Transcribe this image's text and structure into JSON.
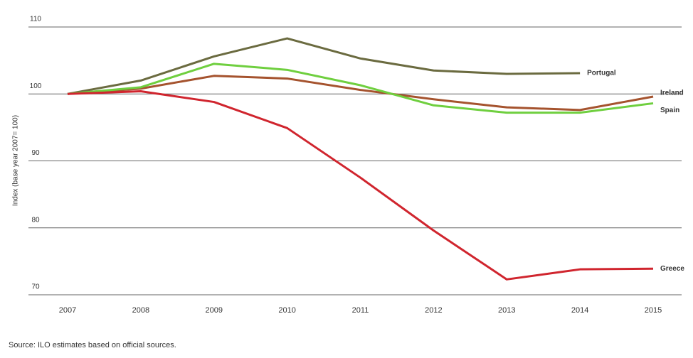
{
  "chart_data": {
    "type": "line",
    "y_label": "Index (base year 2007= 100)",
    "source": "Source: ILO estimates based on official sources.",
    "categories": [
      "2007",
      "2008",
      "2009",
      "2010",
      "2011",
      "2012",
      "2013",
      "2014",
      "2015"
    ],
    "series": [
      {
        "name": "Portugal",
        "color": "#6b6b40",
        "values": [
          100,
          102,
          105.6,
          108.3,
          105.3,
          103.5,
          103,
          103.1,
          null
        ]
      },
      {
        "name": "Ireland",
        "color": "#a5532e",
        "values": [
          100,
          100.8,
          102.7,
          102.3,
          100.6,
          99.2,
          98,
          97.6,
          99.6
        ]
      },
      {
        "name": "Spain",
        "color": "#6fcf3f",
        "values": [
          100,
          101,
          104.5,
          103.6,
          101.3,
          98.3,
          97.2,
          97.2,
          98.6
        ]
      },
      {
        "name": "Greece",
        "color": "#d0252e",
        "values": [
          100,
          100.4,
          98.8,
          94.9,
          87.5,
          79.6,
          72.3,
          73.8,
          73.9
        ]
      }
    ],
    "ylim": [
      70,
      110
    ],
    "yticks": [
      70,
      80,
      90,
      100,
      110
    ],
    "grid": true
  }
}
